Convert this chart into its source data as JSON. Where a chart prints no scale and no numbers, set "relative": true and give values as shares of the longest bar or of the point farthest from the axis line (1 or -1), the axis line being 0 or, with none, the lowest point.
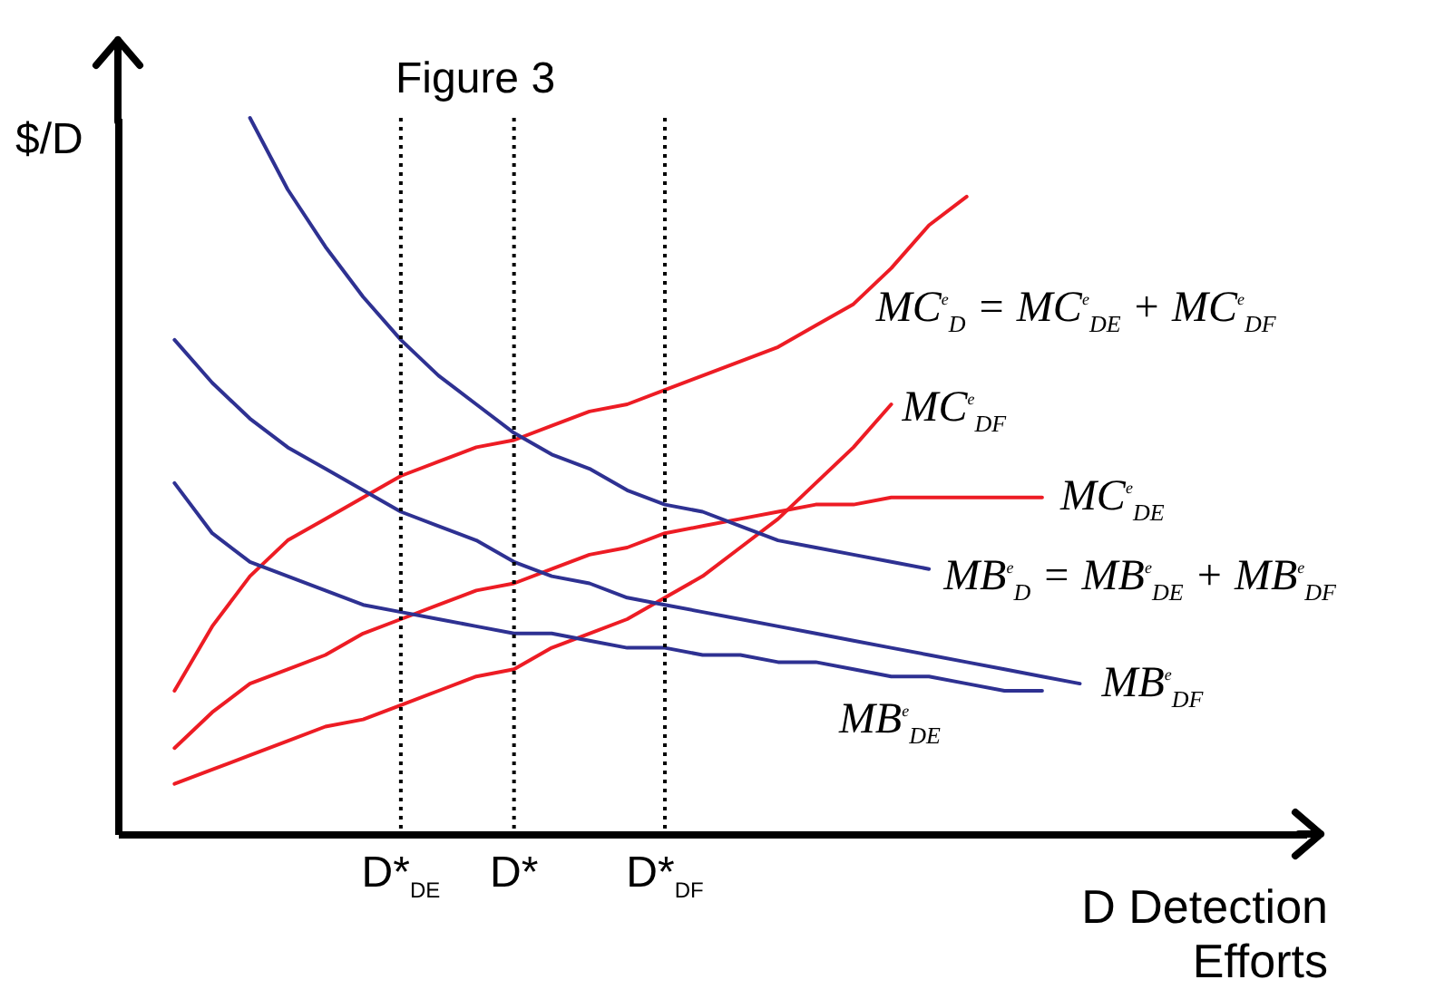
{
  "chart_data": {
    "type": "line",
    "title": "Figure 3",
    "xlabel": "D Detection Efforts",
    "ylabel": "$/D",
    "relative": true,
    "grid": false,
    "legend": false,
    "marker": "none",
    "line_style": "solid",
    "categories": [
      null,
      null,
      null,
      null,
      null,
      null,
      null,
      "D*$_{DE}$",
      null,
      null,
      "D*",
      null,
      null,
      null,
      "D*$_{DF}$",
      null,
      null,
      null,
      null,
      null,
      null,
      null,
      null,
      null,
      null,
      null,
      null
    ],
    "series": [
      {
        "name": "MC$^{e}$$_{D}$ = MC$^{e}$$_{DE}$ + MC$^{e}$$_{DF}$",
        "color": "#ed1c24",
        "values": [
          null,
          0.2,
          0.29,
          0.36,
          0.41,
          0.44,
          0.47,
          0.5,
          0.52,
          0.54,
          0.55,
          0.57,
          0.59,
          0.6,
          0.62,
          0.64,
          0.66,
          0.68,
          0.71,
          0.74,
          0.79,
          0.85,
          0.89,
          null,
          null,
          null,
          null
        ]
      },
      {
        "name": "MC$^{e}$$_{DF}$",
        "color": "#ed1c24",
        "values": [
          null,
          0.07,
          0.09,
          0.11,
          0.13,
          0.15,
          0.16,
          0.18,
          0.2,
          0.22,
          0.23,
          0.26,
          0.28,
          0.3,
          0.33,
          0.36,
          0.4,
          0.44,
          0.49,
          0.54,
          0.6,
          null,
          null,
          null,
          null,
          null,
          null
        ]
      },
      {
        "name": "MC$^{e}$$_{DE}$",
        "color": "#ed1c24",
        "values": [
          null,
          0.12,
          0.17,
          0.21,
          0.23,
          0.25,
          0.28,
          0.3,
          0.32,
          0.34,
          0.35,
          0.37,
          0.39,
          0.4,
          0.42,
          0.43,
          0.44,
          0.45,
          0.46,
          0.46,
          0.47,
          0.47,
          0.47,
          0.47,
          0.47,
          null,
          null
        ]
      },
      {
        "name": "MB$^{e}$$_{D}$ = MB$^{e}$$_{DE}$ + MB$^{e}$$_{DF}$",
        "color": "#2e3192",
        "values": [
          null,
          null,
          null,
          1.0,
          0.9,
          0.82,
          0.75,
          0.69,
          0.64,
          0.6,
          0.56,
          0.53,
          0.51,
          0.48,
          0.46,
          0.45,
          0.43,
          0.41,
          0.4,
          0.39,
          0.38,
          0.37,
          null,
          null,
          null,
          null,
          null
        ]
      },
      {
        "name": "MB$^{e}$$_{DF}$",
        "color": "#2e3192",
        "values": [
          null,
          0.69,
          0.63,
          0.58,
          0.54,
          0.51,
          0.48,
          0.45,
          0.43,
          0.41,
          0.38,
          0.36,
          0.35,
          0.33,
          0.32,
          0.31,
          0.3,
          0.29,
          0.28,
          0.27,
          0.26,
          0.25,
          0.24,
          0.23,
          0.22,
          0.21,
          null
        ]
      },
      {
        "name": "MB$^{e}$$_{DE}$",
        "color": "#2e3192",
        "values": [
          null,
          0.49,
          0.42,
          0.38,
          0.36,
          0.34,
          0.32,
          0.31,
          0.3,
          0.29,
          0.28,
          0.28,
          0.27,
          0.26,
          0.26,
          0.25,
          0.25,
          0.24,
          0.24,
          0.23,
          0.22,
          0.22,
          0.21,
          0.2,
          0.2,
          null,
          null
        ]
      }
    ],
    "ref_lines": [
      {
        "axis": "x",
        "value": "D*$_{DE}$",
        "color": "#000000",
        "line_style": "dotted"
      },
      {
        "axis": "x",
        "value": "D*",
        "color": "#000000",
        "line_style": "dotted"
      },
      {
        "axis": "x",
        "value": "D*$_{DF}$",
        "color": "#000000",
        "line_style": "dotted"
      }
    ]
  }
}
